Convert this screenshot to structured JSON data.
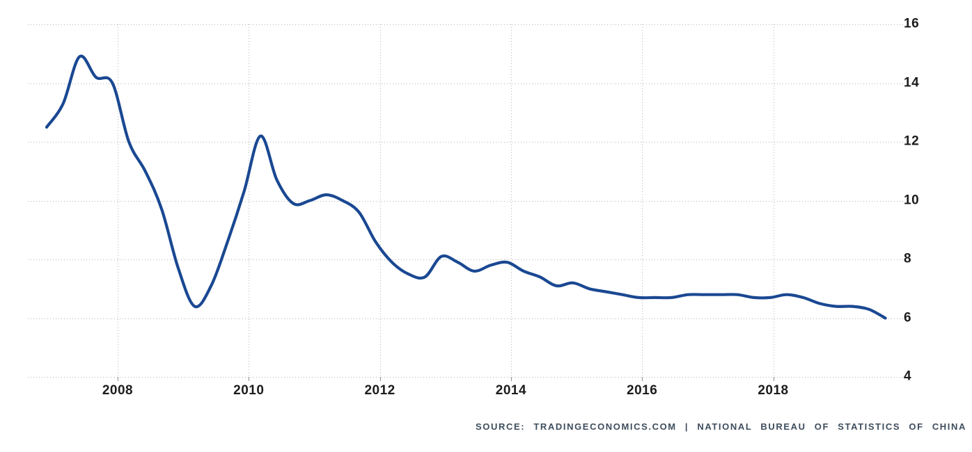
{
  "chart_data": {
    "type": "line",
    "title": "",
    "xlabel": "",
    "ylabel": "",
    "grid": true,
    "legend": "none",
    "y_min": 4,
    "y_max": 16,
    "y_tick_labels": [
      "16",
      "14",
      "12",
      "10",
      "8",
      "6",
      "4"
    ],
    "y_tick_values": [
      16,
      14,
      12,
      10,
      8,
      6,
      4
    ],
    "x_tick_labels": [
      "2008",
      "2010",
      "2012",
      "2014",
      "2016",
      "2018"
    ],
    "periods": [
      "2006-Q4",
      "2007-Q1",
      "2007-Q2",
      "2007-Q3",
      "2007-Q4",
      "2008-Q1",
      "2008-Q2",
      "2008-Q3",
      "2008-Q4",
      "2009-Q1",
      "2009-Q2",
      "2009-Q3",
      "2009-Q4",
      "2010-Q1",
      "2010-Q2",
      "2010-Q3",
      "2010-Q4",
      "2011-Q1",
      "2011-Q2",
      "2011-Q3",
      "2011-Q4",
      "2012-Q1",
      "2012-Q2",
      "2012-Q3",
      "2012-Q4",
      "2013-Q1",
      "2013-Q2",
      "2013-Q3",
      "2013-Q4",
      "2014-Q1",
      "2014-Q2",
      "2014-Q3",
      "2014-Q4",
      "2015-Q1",
      "2015-Q2",
      "2015-Q3",
      "2015-Q4",
      "2016-Q1",
      "2016-Q2",
      "2016-Q3",
      "2016-Q4",
      "2017-Q1",
      "2017-Q2",
      "2017-Q3",
      "2017-Q4",
      "2018-Q1",
      "2018-Q2",
      "2018-Q3",
      "2018-Q4",
      "2019-Q1",
      "2019-Q2",
      "2019-Q3"
    ],
    "values": [
      12.5,
      13.3,
      14.9,
      14.2,
      14.0,
      12.0,
      11.0,
      9.7,
      7.7,
      6.4,
      7.1,
      8.6,
      10.3,
      12.2,
      10.7,
      9.9,
      10.0,
      10.2,
      10.0,
      9.6,
      8.6,
      7.9,
      7.5,
      7.4,
      8.1,
      7.9,
      7.6,
      7.8,
      7.9,
      7.6,
      7.4,
      7.1,
      7.2,
      7.0,
      6.9,
      6.8,
      6.7,
      6.7,
      6.7,
      6.8,
      6.8,
      6.8,
      6.8,
      6.7,
      6.7,
      6.8,
      6.7,
      6.5,
      6.4,
      6.4,
      6.3,
      6.0
    ]
  },
  "colors": {
    "line": "#1a4892",
    "grid": "#b4b4b4",
    "tick_label": "#1c1c1c",
    "source_text": "#3e4d5d",
    "background": "#ffffff"
  },
  "source": {
    "text": "SOURCE: TRADINGECONOMICS.COM | NATIONAL BUREAU OF STATISTICS OF CHINA"
  }
}
